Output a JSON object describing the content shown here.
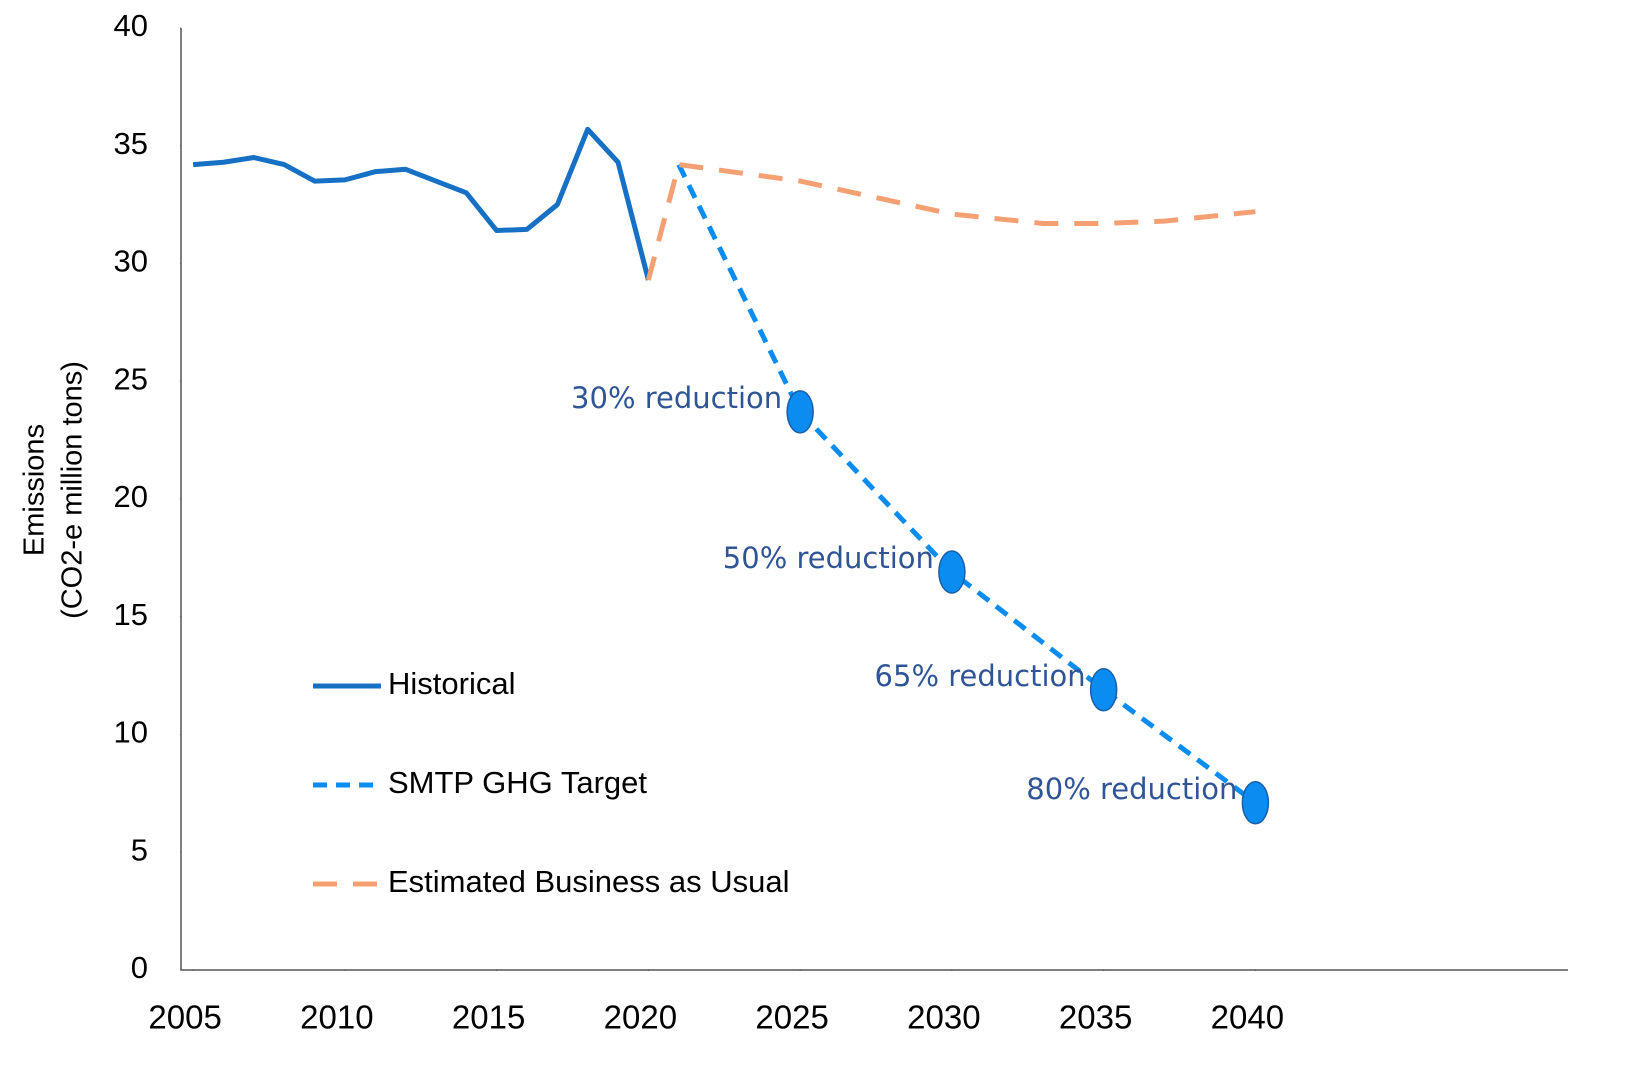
{
  "chart_data": {
    "type": "line",
    "ylabel": [
      "Emissions",
      "(CO2-e million tons)"
    ],
    "xlim": [
      2004.6,
      2050.3
    ],
    "xticks": [
      2005,
      2010,
      2015,
      2020,
      2025,
      2030,
      2035,
      2040
    ],
    "ylim": [
      0,
      40
    ],
    "yticks": [
      0,
      5,
      10,
      15,
      20,
      25,
      30,
      35,
      40
    ],
    "series": [
      {
        "name": "Historical",
        "color": "#1670c4",
        "dash": "solid",
        "x": [
          2005,
          2006,
          2007,
          2008,
          2009,
          2010,
          2011,
          2012,
          2013,
          2014,
          2015,
          2016,
          2017,
          2018,
          2019,
          2020
        ],
        "values": [
          34.2,
          34.3,
          34.5,
          34.2,
          33.5,
          33.55,
          33.9,
          34.0,
          33.5,
          33.0,
          31.4,
          31.45,
          32.5,
          35.7,
          34.3,
          29.3
        ]
      },
      {
        "name": "SMTP GHG Target",
        "color": "#0a8cf0",
        "dash": "short",
        "x": [
          2021,
          2025,
          2030,
          2035,
          2040
        ],
        "values": [
          34.2,
          23.7,
          16.9,
          11.9,
          7.1
        ]
      },
      {
        "name": "Estimated Business as Usual",
        "color": "#f4a072",
        "dash": "long",
        "x": [
          2020,
          2021,
          2025,
          2030,
          2033,
          2035,
          2037,
          2040
        ],
        "values": [
          29.3,
          34.2,
          33.5,
          32.1,
          31.7,
          31.7,
          31.8,
          32.2
        ]
      }
    ],
    "annotations": [
      "30% reduction",
      "50% reduction",
      "65% reduction",
      "80% reduction"
    ]
  }
}
